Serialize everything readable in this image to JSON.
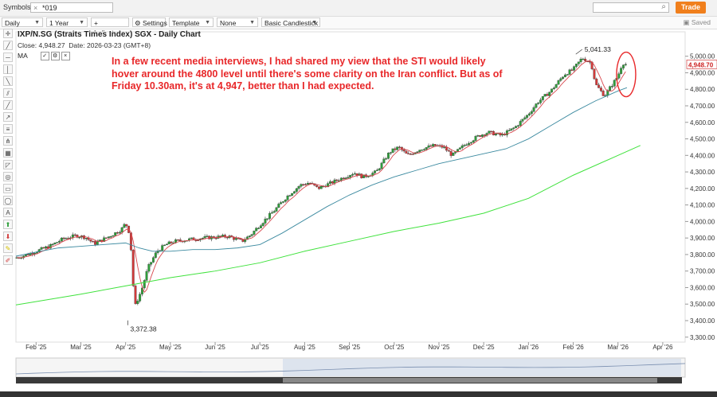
{
  "topbar": {
    "symbols_label": "Symbols:",
    "symbol_value": "*019",
    "trade_label": "Trade"
  },
  "toolbar": {
    "interval": "Daily",
    "range": "1 Year",
    "indicators": "+ Indicators",
    "settings": "Settings",
    "template": "Template",
    "none": "None",
    "chart_style": "Basic Candlestick",
    "saved": "Saved"
  },
  "annotation": "In a few recent media interviews, I had shared my view that the STI  would likely hover around the 4800 level until there's some clarity on the Iran conflict. But as of Friday 10.30am, it's at 4,947, better than I had expected.",
  "ma_label": "MA",
  "colors": {
    "up": "#2e9e3a",
    "down": "#d23a3a",
    "ma_short": "#d9484f",
    "ma_mid": "#3c8aa0",
    "ma_long": "#3fe23c",
    "annotation": "#e8282a",
    "last_price": "#cc2222"
  },
  "chart_data": {
    "type": "candlestick",
    "title": "IXP/N.SG (Straits Times Index) SGX - Daily Chart",
    "close_label": "Close:",
    "close_value": "4,948.27",
    "date_label": "Date:",
    "date_value": "2026-03-23 (GMT+8)",
    "x_tick_labels": [
      "Feb '25",
      "Mar '25",
      "Apr '25",
      "May '25",
      "Jun '25",
      "Jul '25",
      "Aug '25",
      "Sep '25",
      "Oct '25",
      "Nov '25",
      "Dec '25",
      "Jan '26",
      "Feb '26",
      "Mar '26",
      "Apr '26"
    ],
    "x_tick_months": [
      1,
      2,
      3,
      4,
      5,
      6,
      7,
      8,
      9,
      10,
      11,
      12,
      13,
      14,
      15
    ],
    "y_ticks": [
      3300,
      3400,
      3500,
      3600,
      3700,
      3800,
      3900,
      4000,
      4100,
      4200,
      4300,
      4400,
      4500,
      4600,
      4700,
      4800,
      4900,
      5000
    ],
    "y_tick_labels": [
      "3,300.00",
      "3,400.00",
      "3,500.00",
      "3,600.00",
      "3,700.00",
      "3,800.00",
      "3,900.00",
      "4,000.00",
      "4,100.00",
      "4,200.00",
      "4,300.00",
      "4,400.00",
      "4,500.00",
      "4,600.00",
      "4,700.00",
      "4,800.00",
      "4,900.00",
      "5,000.00"
    ],
    "ylim": [
      3270,
      5090
    ],
    "xlim_months": [
      0.55,
      15.5
    ],
    "last_price": 4948.7,
    "last_price_label": "4,948.70",
    "annotations": [
      {
        "month": 13.2,
        "value": 5041.33,
        "label": "5,041.33"
      },
      {
        "month": 3.05,
        "value": 3372.38,
        "label": "3,372.38"
      }
    ],
    "close_path": [
      [
        0.55,
        3780
      ],
      [
        0.8,
        3800
      ],
      [
        1.0,
        3820
      ],
      [
        1.3,
        3850
      ],
      [
        1.6,
        3895
      ],
      [
        1.9,
        3915
      ],
      [
        2.1,
        3905
      ],
      [
        2.3,
        3865
      ],
      [
        2.6,
        3905
      ],
      [
        2.9,
        3950
      ],
      [
        3.0,
        3990
      ],
      [
        3.1,
        3920
      ],
      [
        3.2,
        3480
      ],
      [
        3.35,
        3580
      ],
      [
        3.5,
        3720
      ],
      [
        3.7,
        3820
      ],
      [
        3.9,
        3860
      ],
      [
        4.1,
        3880
      ],
      [
        4.4,
        3890
      ],
      [
        4.7,
        3900
      ],
      [
        5.0,
        3905
      ],
      [
        5.3,
        3910
      ],
      [
        5.6,
        3880
      ],
      [
        5.8,
        3920
      ],
      [
        6.0,
        3980
      ],
      [
        6.3,
        4060
      ],
      [
        6.6,
        4150
      ],
      [
        6.9,
        4220
      ],
      [
        7.1,
        4235
      ],
      [
        7.3,
        4200
      ],
      [
        7.6,
        4235
      ],
      [
        7.9,
        4270
      ],
      [
        8.1,
        4295
      ],
      [
        8.3,
        4270
      ],
      [
        8.6,
        4300
      ],
      [
        8.9,
        4420
      ],
      [
        9.1,
        4450
      ],
      [
        9.3,
        4400
      ],
      [
        9.6,
        4440
      ],
      [
        9.9,
        4460
      ],
      [
        10.1,
        4450
      ],
      [
        10.3,
        4400
      ],
      [
        10.6,
        4470
      ],
      [
        10.9,
        4520
      ],
      [
        11.1,
        4540
      ],
      [
        11.4,
        4520
      ],
      [
        11.7,
        4570
      ],
      [
        12.0,
        4650
      ],
      [
        12.2,
        4720
      ],
      [
        12.5,
        4790
      ],
      [
        12.8,
        4890
      ],
      [
        13.0,
        4920
      ],
      [
        13.2,
        4990
      ],
      [
        13.4,
        4960
      ],
      [
        13.5,
        4830
      ],
      [
        13.7,
        4760
      ],
      [
        13.9,
        4840
      ],
      [
        14.0,
        4880
      ],
      [
        14.1,
        4960
      ],
      [
        14.2,
        4948
      ]
    ],
    "ma_mid_path": [
      [
        0.55,
        3790
      ],
      [
        1.0,
        3815
      ],
      [
        1.5,
        3840
      ],
      [
        2.0,
        3850
      ],
      [
        2.5,
        3860
      ],
      [
        3.0,
        3870
      ],
      [
        3.3,
        3840
      ],
      [
        3.6,
        3820
      ],
      [
        4.0,
        3820
      ],
      [
        4.5,
        3830
      ],
      [
        5.0,
        3830
      ],
      [
        5.5,
        3840
      ],
      [
        6.0,
        3860
      ],
      [
        6.5,
        3930
      ],
      [
        7.0,
        4010
      ],
      [
        7.5,
        4090
      ],
      [
        8.0,
        4160
      ],
      [
        8.5,
        4220
      ],
      [
        9.0,
        4270
      ],
      [
        9.5,
        4310
      ],
      [
        10.0,
        4350
      ],
      [
        10.5,
        4380
      ],
      [
        11.0,
        4410
      ],
      [
        11.5,
        4440
      ],
      [
        12.0,
        4500
      ],
      [
        12.5,
        4580
      ],
      [
        13.0,
        4660
      ],
      [
        13.5,
        4730
      ],
      [
        14.0,
        4790
      ],
      [
        14.2,
        4810
      ]
    ],
    "ma_long_path": [
      [
        0.55,
        3495
      ],
      [
        2.0,
        3560
      ],
      [
        3.0,
        3610
      ],
      [
        4.0,
        3660
      ],
      [
        5.0,
        3700
      ],
      [
        6.0,
        3750
      ],
      [
        7.0,
        3820
      ],
      [
        8.0,
        3880
      ],
      [
        9.0,
        3940
      ],
      [
        10.0,
        3990
      ],
      [
        11.0,
        4050
      ],
      [
        12.0,
        4140
      ],
      [
        13.0,
        4280
      ],
      [
        14.0,
        4400
      ],
      [
        14.5,
        4460
      ]
    ]
  }
}
